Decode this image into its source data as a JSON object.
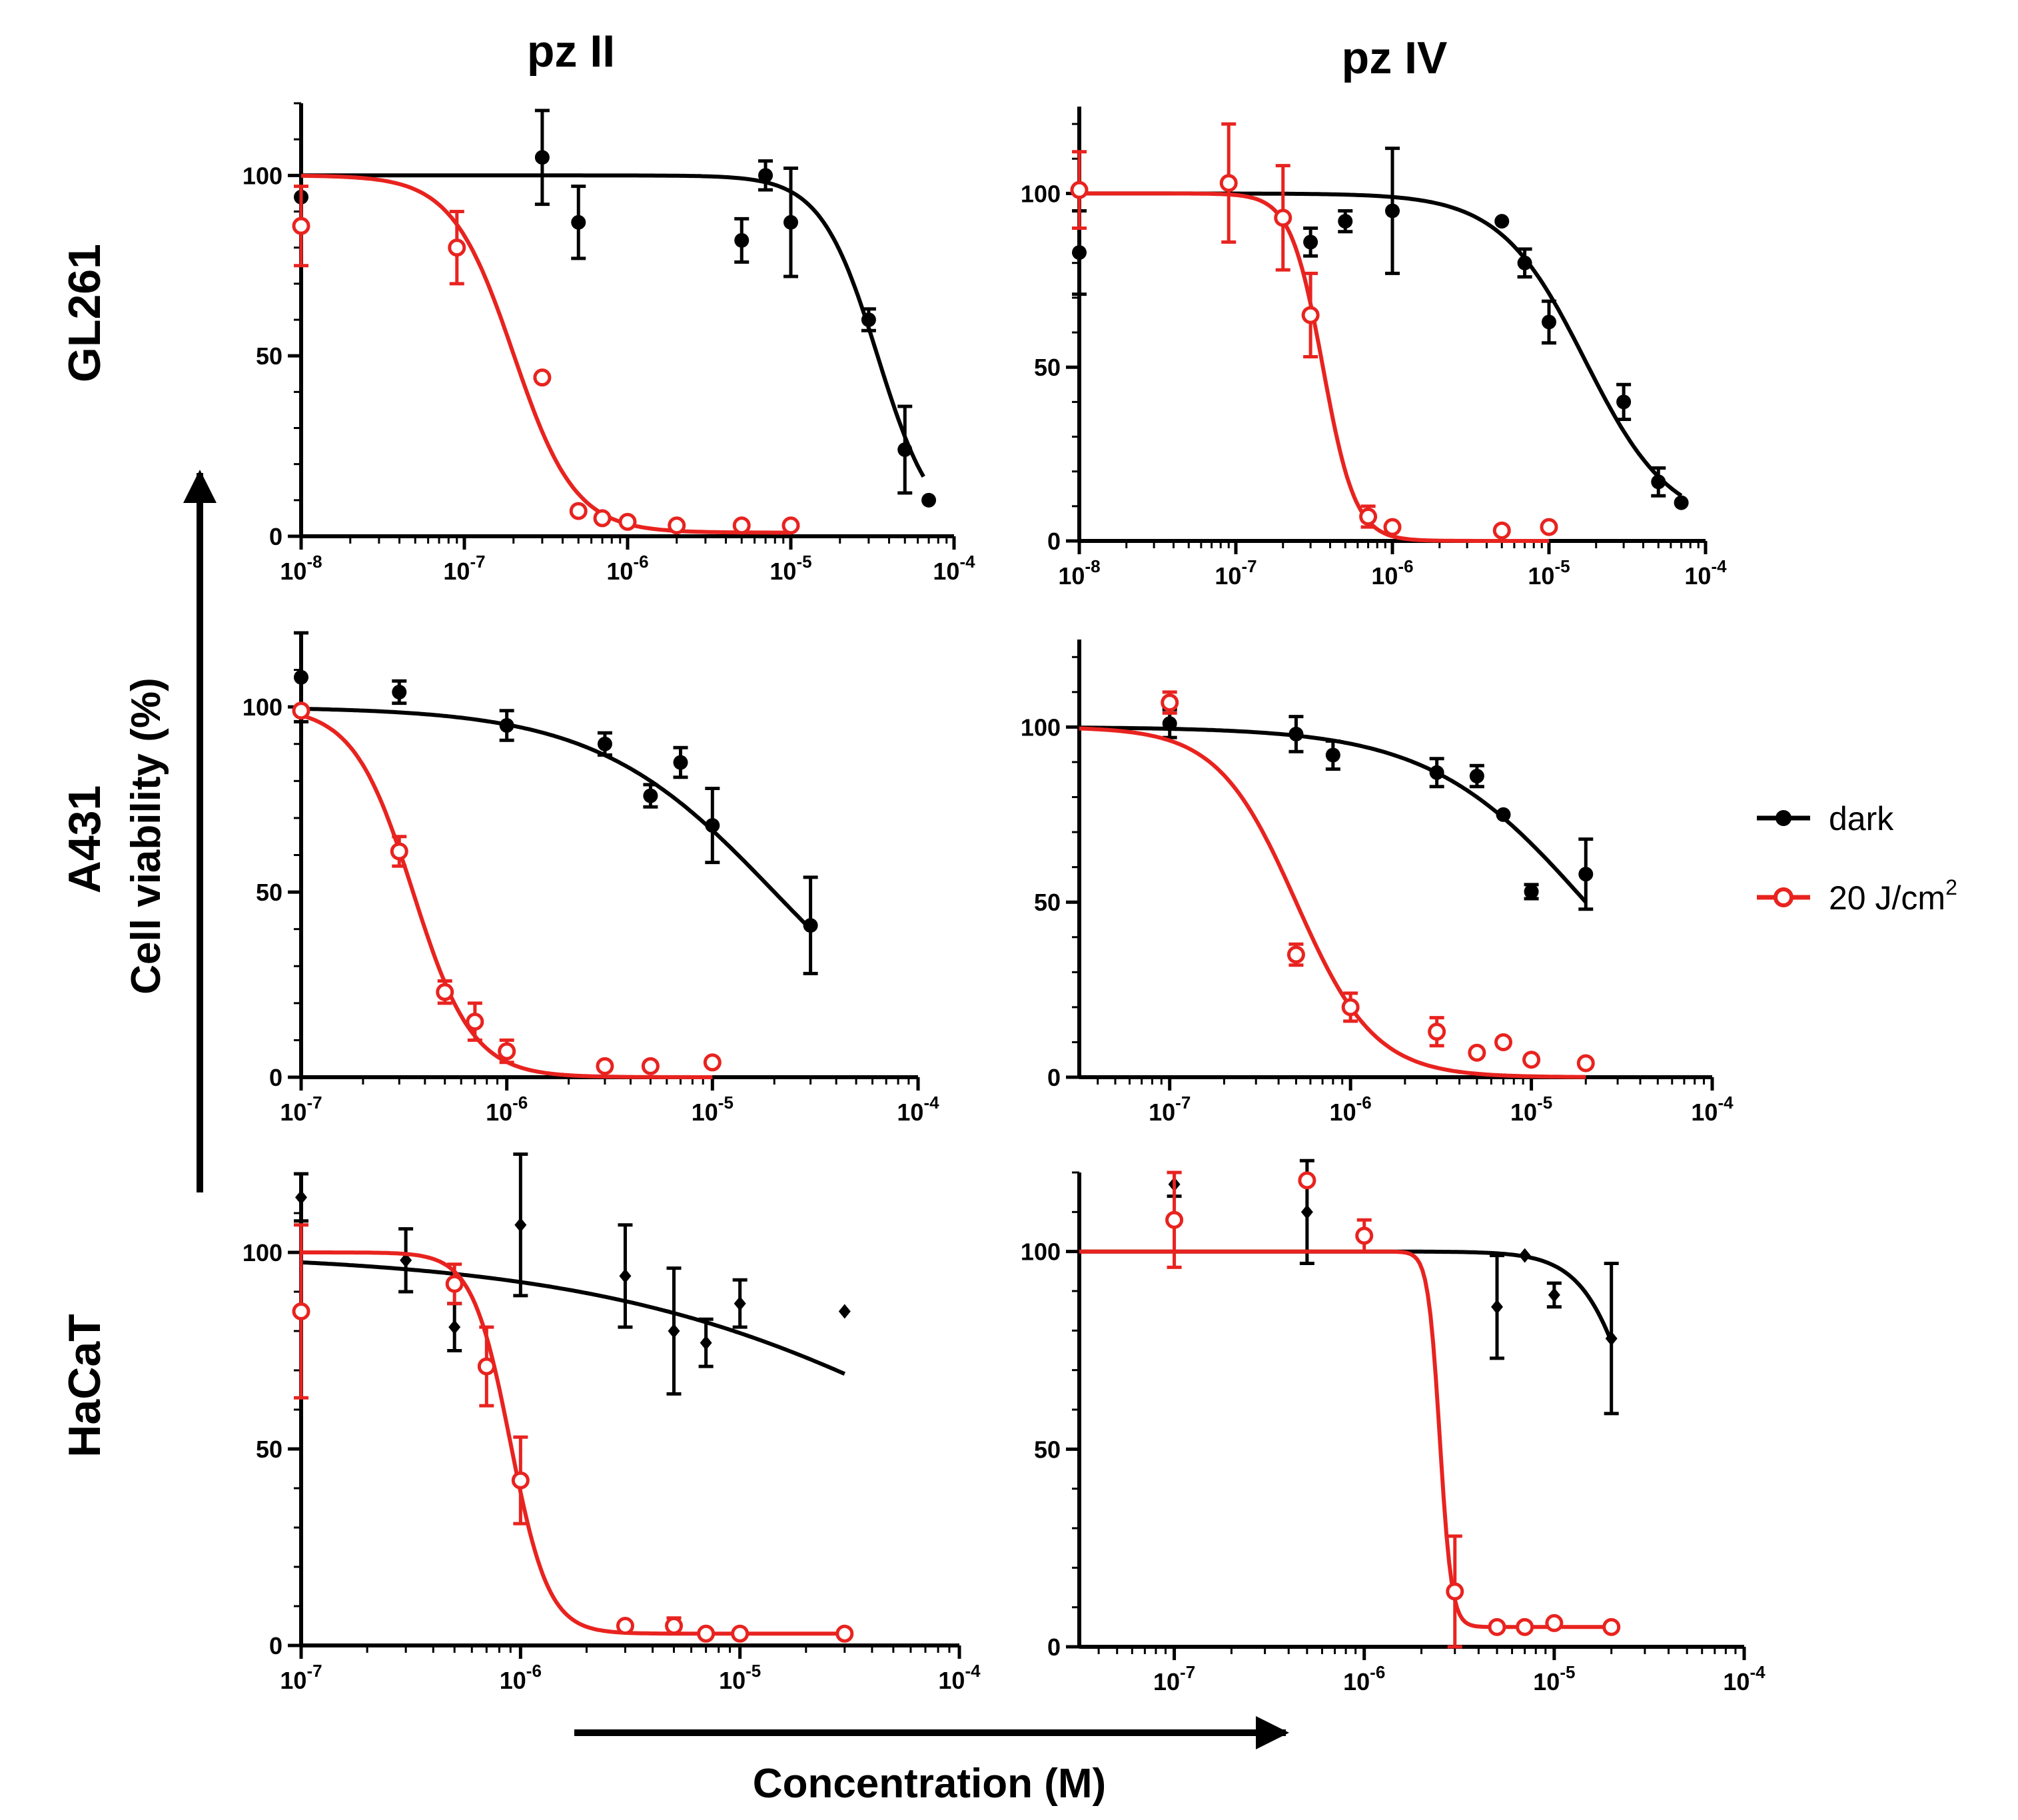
{
  "figure": {
    "col_titles": [
      "pz II",
      "pz IV"
    ],
    "row_titles": [
      "GL261",
      "A431",
      "HaCaT"
    ],
    "ylabel": "Cell viability (%)",
    "xlabel": "Concentration (M)",
    "legend": [
      {
        "label": "dark",
        "color": "#000000",
        "marker": "filled-circle"
      },
      {
        "label": "20 J/cm",
        "sup": "2",
        "color": "#e8231f",
        "marker": "open-circle"
      }
    ]
  },
  "chart_data": [
    {
      "id": "gl261-pz2",
      "type": "scatter",
      "title": "GL261 pz II",
      "xlim_log": [
        -8,
        -4
      ],
      "ylim": [
        0,
        120
      ],
      "yticks": [
        0,
        50,
        100
      ],
      "xticks": [
        {
          "base": "10",
          "exp": "-8"
        },
        {
          "base": "10",
          "exp": "-7"
        },
        {
          "base": "10",
          "exp": "-6"
        },
        {
          "base": "10",
          "exp": "-5"
        },
        {
          "base": "10",
          "exp": "-4"
        }
      ],
      "series": [
        {
          "name": "dark",
          "marker": "filled-circle",
          "points": [
            [
              1e-08,
              94,
              0
            ],
            [
              3e-07,
              105,
              13
            ],
            [
              5e-07,
              87,
              10
            ],
            [
              5e-06,
              82,
              6
            ],
            [
              7e-06,
              100,
              4
            ],
            [
              1e-05,
              87,
              15
            ],
            [
              3e-05,
              60,
              3
            ],
            [
              5e-05,
              24,
              12
            ],
            [
              7e-05,
              10,
              0
            ]
          ],
          "fit": {
            "top": 100,
            "bottom": 0,
            "ec50": 3.4e-05,
            "hill": 2.5,
            "xmin": 1e-08,
            "xmax": 6.5e-05
          }
        },
        {
          "name": "20 J/cm2",
          "marker": "open-circle",
          "points": [
            [
              1e-08,
              86,
              11
            ],
            [
              9e-08,
              80,
              10
            ],
            [
              3e-07,
              44,
              0
            ],
            [
              5e-07,
              7,
              0
            ],
            [
              7e-07,
              5,
              0
            ],
            [
              1e-06,
              4,
              0
            ],
            [
              2e-06,
              3,
              0
            ],
            [
              5e-06,
              3,
              0
            ],
            [
              1e-05,
              3,
              0
            ]
          ],
          "fit": {
            "top": 100,
            "bottom": 1,
            "ec50": 2e-07,
            "hill": 2.3,
            "xmin": 1e-08,
            "xmax": 1e-05
          }
        }
      ]
    },
    {
      "id": "gl261-pz4",
      "type": "scatter",
      "title": "GL261 pz IV",
      "xlim_log": [
        -8,
        -4
      ],
      "ylim": [
        0,
        125
      ],
      "yticks": [
        0,
        50,
        100
      ],
      "xticks": [
        {
          "base": "10",
          "exp": "-8"
        },
        {
          "base": "10",
          "exp": "-7"
        },
        {
          "base": "10",
          "exp": "-6"
        },
        {
          "base": "10",
          "exp": "-5"
        },
        {
          "base": "10",
          "exp": "-4"
        }
      ],
      "series": [
        {
          "name": "dark",
          "marker": "filled-circle",
          "points": [
            [
              1e-08,
              83,
              12
            ],
            [
              3e-07,
              86,
              4
            ],
            [
              5e-07,
              92,
              3
            ],
            [
              1e-06,
              95,
              18
            ],
            [
              5e-06,
              92,
              0
            ],
            [
              7e-06,
              80,
              4
            ],
            [
              1e-05,
              63,
              6
            ],
            [
              3e-05,
              40,
              5
            ],
            [
              5e-05,
              17,
              4
            ],
            [
              7e-05,
              11,
              0
            ]
          ],
          "fit": {
            "top": 100,
            "bottom": 4,
            "ec50": 1.7e-05,
            "hill": 1.6,
            "xmin": 1e-08,
            "xmax": 7e-05
          }
        },
        {
          "name": "20 J/cm2",
          "marker": "open-circle",
          "points": [
            [
              1e-08,
              101,
              11
            ],
            [
              9e-08,
              103,
              17
            ],
            [
              2e-07,
              93,
              15
            ],
            [
              3e-07,
              65,
              12
            ],
            [
              7e-07,
              7,
              3
            ],
            [
              1e-06,
              4,
              0
            ],
            [
              5e-06,
              3,
              0
            ],
            [
              1e-05,
              4,
              0
            ]
          ],
          "fit": {
            "top": 100,
            "bottom": 0,
            "ec50": 3.6e-07,
            "hill": 4.2,
            "xmin": 1e-08,
            "xmax": 1e-05
          }
        }
      ]
    },
    {
      "id": "a431-pz2",
      "type": "scatter",
      "title": "A431 pz II",
      "xlim_log": [
        -7,
        -4
      ],
      "ylim": [
        0,
        120
      ],
      "yticks": [
        0,
        50,
        100
      ],
      "xticks": [
        {
          "base": "10",
          "exp": "-7"
        },
        {
          "base": "10",
          "exp": "-6"
        },
        {
          "base": "10",
          "exp": "-5"
        },
        {
          "base": "10",
          "exp": "-4"
        }
      ],
      "series": [
        {
          "name": "dark",
          "marker": "filled-circle",
          "points": [
            [
              1e-07,
              108,
              12
            ],
            [
              3e-07,
              104,
              3
            ],
            [
              1e-06,
              95,
              4
            ],
            [
              3e-06,
              90,
              3
            ],
            [
              5e-06,
              76,
              3
            ],
            [
              7e-06,
              85,
              4
            ],
            [
              1e-05,
              68,
              10
            ],
            [
              3e-05,
              41,
              13
            ]
          ],
          "fit": {
            "top": 100,
            "bottom": 0,
            "ec50": 2e-05,
            "hill": 1.0,
            "xmin": 1e-07,
            "xmax": 3e-05
          }
        },
        {
          "name": "20 J/cm2",
          "marker": "open-circle",
          "points": [
            [
              1e-07,
              99,
              0
            ],
            [
              3e-07,
              61,
              4
            ],
            [
              5e-07,
              23,
              3
            ],
            [
              7e-07,
              15,
              5
            ],
            [
              1e-06,
              7,
              3
            ],
            [
              3e-06,
              3,
              0
            ],
            [
              5e-06,
              3,
              0
            ],
            [
              1e-05,
              4,
              0
            ]
          ],
          "fit": {
            "top": 100,
            "bottom": 0,
            "ec50": 3.5e-07,
            "hill": 3.0,
            "xmin": 1e-07,
            "xmax": 1e-05
          }
        }
      ]
    },
    {
      "id": "a431-pz4",
      "type": "scatter",
      "title": "A431 pz IV",
      "xlim_log": [
        -7.5,
        -4
      ],
      "ylim": [
        0,
        125
      ],
      "yticks": [
        0,
        50,
        100
      ],
      "xticks": [
        {
          "base": "10",
          "exp": "-7"
        },
        {
          "base": "10",
          "exp": "-6"
        },
        {
          "base": "10",
          "exp": "-5"
        },
        {
          "base": "10",
          "exp": "-4"
        }
      ],
      "series": [
        {
          "name": "dark",
          "marker": "filled-circle",
          "points": [
            [
              1e-07,
              101,
              4
            ],
            [
              5e-07,
              98,
              5
            ],
            [
              8e-07,
              92,
              4
            ],
            [
              3e-06,
              87,
              4
            ],
            [
              5e-06,
              86,
              3
            ],
            [
              7e-06,
              75,
              0
            ],
            [
              1e-05,
              53,
              2
            ],
            [
              2e-05,
              58,
              10
            ]
          ],
          "fit": {
            "top": 100,
            "bottom": 0,
            "ec50": 2e-05,
            "hill": 1.0,
            "xmin": 3.16e-08,
            "xmax": 2e-05
          }
        },
        {
          "name": "20 J/cm2",
          "marker": "open-circle",
          "points": [
            [
              1e-07,
              107,
              3
            ],
            [
              5e-07,
              35,
              3
            ],
            [
              1e-06,
              20,
              4
            ],
            [
              3e-06,
              13,
              4
            ],
            [
              5e-06,
              7,
              0
            ],
            [
              7e-06,
              10,
              0
            ],
            [
              1e-05,
              5,
              0
            ],
            [
              2e-05,
              4,
              0
            ]
          ],
          "fit": {
            "top": 100,
            "bottom": 0,
            "ec50": 5e-07,
            "hill": 2.0,
            "xmin": 3.16e-08,
            "xmax": 2e-05
          }
        }
      ]
    },
    {
      "id": "hacat-pz2",
      "type": "scatter",
      "title": "HaCaT pz II",
      "xlim_log": [
        -7,
        -4
      ],
      "ylim": [
        0,
        120
      ],
      "yticks": [
        0,
        50,
        100
      ],
      "xticks": [
        {
          "base": "10",
          "exp": "-7"
        },
        {
          "base": "10",
          "exp": "-6"
        },
        {
          "base": "10",
          "exp": "-5"
        },
        {
          "base": "10",
          "exp": "-4"
        }
      ],
      "series": [
        {
          "name": "dark",
          "marker": "filled-diamond",
          "points": [
            [
              1e-07,
              114,
              6
            ],
            [
              3e-07,
              98,
              8
            ],
            [
              5e-07,
              81,
              6
            ],
            [
              1e-06,
              107,
              18
            ],
            [
              3e-06,
              94,
              13
            ],
            [
              5e-06,
              80,
              16
            ],
            [
              7e-06,
              77,
              6
            ],
            [
              1e-05,
              87,
              6
            ],
            [
              3e-05,
              85,
              0
            ]
          ],
          "fit": {
            "top": 100,
            "bottom": 0,
            "ec50": 0.00015,
            "hill": 0.5,
            "xmin": 1e-07,
            "xmax": 3e-05
          }
        },
        {
          "name": "20 J/cm2",
          "marker": "open-circle",
          "points": [
            [
              1e-07,
              85,
              22
            ],
            [
              5e-07,
              92,
              5
            ],
            [
              7e-07,
              71,
              10
            ],
            [
              1e-06,
              42,
              11
            ],
            [
              3e-06,
              5,
              0
            ],
            [
              5e-06,
              5,
              2
            ],
            [
              7e-06,
              3,
              0
            ],
            [
              1e-05,
              3,
              0
            ],
            [
              3e-05,
              3,
              0
            ]
          ],
          "fit": {
            "top": 100,
            "bottom": 3,
            "ec50": 9e-07,
            "hill": 5.0,
            "xmin": 1e-07,
            "xmax": 3e-05
          }
        }
      ]
    },
    {
      "id": "hacat-pz4",
      "type": "scatter",
      "title": "HaCaT pz IV",
      "xlim_log": [
        -7.5,
        -4
      ],
      "ylim": [
        0,
        120
      ],
      "yticks": [
        0,
        50,
        100
      ],
      "xticks": [
        {
          "base": "10",
          "exp": "-7"
        },
        {
          "base": "10",
          "exp": "-6"
        },
        {
          "base": "10",
          "exp": "-5"
        },
        {
          "base": "10",
          "exp": "-4"
        }
      ],
      "series": [
        {
          "name": "dark",
          "marker": "filled-diamond",
          "points": [
            [
              1e-07,
              117,
              3
            ],
            [
              5e-07,
              110,
              13
            ],
            [
              5e-06,
              86,
              13
            ],
            [
              7e-06,
              99,
              0
            ],
            [
              1e-05,
              89,
              3
            ],
            [
              2e-05,
              78,
              19
            ]
          ],
          "fit": {
            "top": 100,
            "bottom": 0,
            "ec50": 3e-05,
            "hill": 3.0,
            "xmin": 3.16e-08,
            "xmax": 2e-05
          }
        },
        {
          "name": "20 J/cm2",
          "marker": "open-circle",
          "points": [
            [
              1e-07,
              108,
              12
            ],
            [
              5e-07,
              118,
              0
            ],
            [
              1e-06,
              104,
              4
            ],
            [
              3e-06,
              14,
              14
            ],
            [
              5e-06,
              5,
              0
            ],
            [
              7e-06,
              5,
              0
            ],
            [
              1e-05,
              6,
              0
            ],
            [
              2e-05,
              5,
              0
            ]
          ],
          "fit": {
            "top": 100,
            "bottom": 5,
            "ec50": 2.5e-06,
            "hill": 14,
            "xmin": 3.16e-08,
            "xmax": 2e-05
          }
        }
      ]
    }
  ]
}
